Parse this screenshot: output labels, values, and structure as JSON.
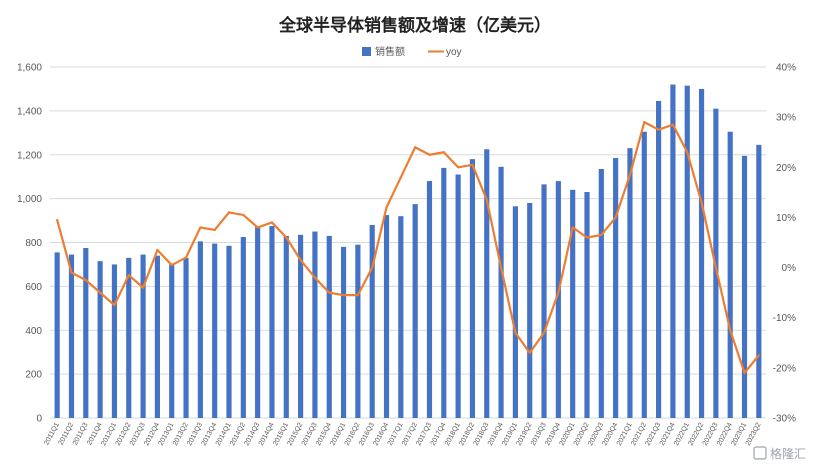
{
  "chart_data": {
    "type": "bar+line",
    "title": "全球半导体销售额及增速（亿美元）",
    "categories": [
      "2011Q1",
      "2011Q2",
      "2011Q3",
      "2011Q4",
      "2012Q1",
      "2012Q2",
      "2012Q3",
      "2012Q4",
      "2013Q1",
      "2013Q2",
      "2013Q3",
      "2013Q4",
      "2014Q1",
      "2014Q2",
      "2014Q3",
      "2014Q4",
      "2015Q1",
      "2015Q2",
      "2015Q3",
      "2015Q4",
      "2016Q1",
      "2016Q2",
      "2016Q3",
      "2016Q4",
      "2017Q1",
      "2017Q2",
      "2017Q3",
      "2017Q4",
      "2018Q1",
      "2018Q2",
      "2018Q3",
      "2018Q4",
      "2019Q1",
      "2019Q2",
      "2019Q3",
      "2019Q4",
      "2020Q1",
      "2020Q2",
      "2020Q3",
      "2020Q4",
      "2021Q1",
      "2021Q2",
      "2021Q3",
      "2021Q4",
      "2022Q1",
      "2022Q2",
      "2022Q3",
      "2022Q4",
      "2023Q1",
      "2023Q2"
    ],
    "series": [
      {
        "name": "销售额",
        "type": "bar",
        "axis": "left",
        "color": "#4472c4",
        "values": [
          755,
          745,
          775,
          715,
          700,
          730,
          745,
          740,
          700,
          730,
          805,
          795,
          785,
          825,
          870,
          875,
          830,
          835,
          850,
          830,
          780,
          790,
          880,
          925,
          920,
          975,
          1080,
          1140,
          1110,
          1180,
          1225,
          1145,
          965,
          980,
          1065,
          1080,
          1040,
          1030,
          1135,
          1185,
          1230,
          1305,
          1445,
          1520,
          1515,
          1500,
          1410,
          1305,
          1195,
          1245
        ]
      },
      {
        "name": "yoy",
        "type": "line",
        "axis": "right",
        "color": "#ed7d31",
        "values": [
          9.5,
          -1,
          -2.5,
          -5,
          -7.5,
          -1.5,
          -4,
          3.5,
          0.5,
          2,
          8,
          7.5,
          11,
          10.5,
          8,
          9,
          6,
          1.5,
          -2,
          -5,
          -5.5,
          -5.5,
          0,
          12,
          18,
          24,
          22.5,
          23,
          20,
          20.5,
          13.5,
          0,
          -13,
          -17,
          -13,
          -5,
          8,
          6,
          6.5,
          10,
          18.5,
          29,
          27.5,
          28.5,
          23,
          13,
          0,
          -12.5,
          -21,
          -17.5
        ]
      }
    ],
    "y_left": {
      "min": 0,
      "max": 1600,
      "step": 200,
      "tick_labels": [
        "0",
        "200",
        "400",
        "600",
        "800",
        "1,000",
        "1,200",
        "1,400",
        "1,600"
      ]
    },
    "y_right": {
      "min": -30,
      "max": 40,
      "step": 10,
      "tick_labels": [
        "-30%",
        "-20%",
        "-10%",
        "0%",
        "10%",
        "20%",
        "30%",
        "40%"
      ]
    },
    "grid": true,
    "legend_position": "top-center"
  },
  "watermark": {
    "text": "格隆汇"
  }
}
